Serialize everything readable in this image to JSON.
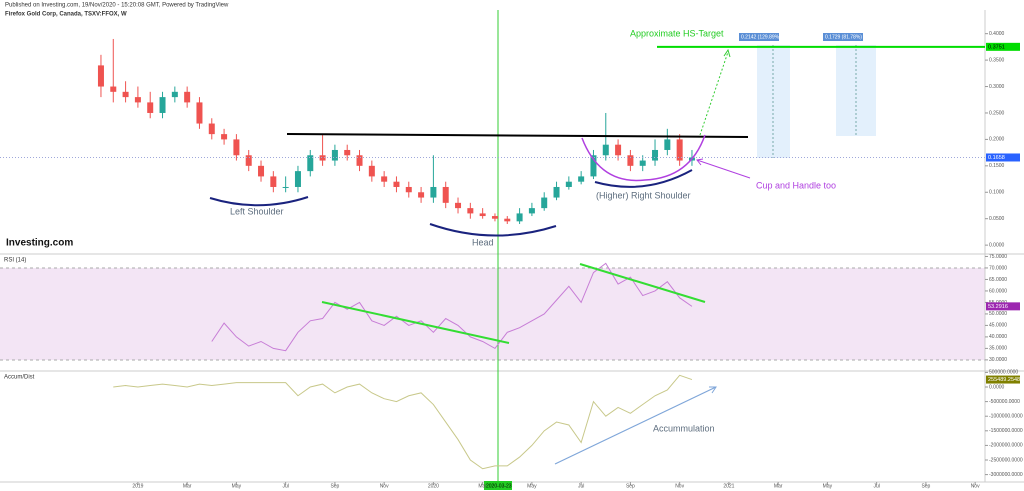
{
  "header": {
    "published": "Published on Investing.com, 19/Nov/2020 - 15:20:08 GMT, Powered by TradingView",
    "logo": "Investing.com"
  },
  "chart_data": [
    {
      "type": "candlestick",
      "title": "Firefox Gold Corp, Canada, TSXV:FFOX, W",
      "x": [
        -1.5,
        -1,
        -0.5,
        0,
        0.5,
        1,
        1.5,
        2,
        2.5,
        3,
        3.5,
        4,
        4.5,
        5,
        5.5,
        6,
        6.5,
        7,
        7.5,
        8,
        8.5,
        9,
        9.5,
        10,
        10.5,
        11,
        11.5,
        12,
        12.5,
        13,
        13.5,
        14,
        14.5,
        15,
        15.5,
        16,
        16.5,
        17,
        17.5,
        18,
        18.5,
        19,
        19.5,
        20,
        20.5,
        21,
        21.5,
        22,
        22.5
      ],
      "open": [
        0.34,
        0.3,
        0.29,
        0.28,
        0.27,
        0.25,
        0.28,
        0.29,
        0.27,
        0.23,
        0.21,
        0.2,
        0.17,
        0.15,
        0.13,
        0.11,
        0.11,
        0.14,
        0.17,
        0.16,
        0.18,
        0.17,
        0.15,
        0.13,
        0.12,
        0.11,
        0.1,
        0.09,
        0.11,
        0.08,
        0.07,
        0.06,
        0.055,
        0.05,
        0.045,
        0.06,
        0.07,
        0.09,
        0.11,
        0.12,
        0.13,
        0.17,
        0.19,
        0.17,
        0.15,
        0.16,
        0.18,
        0.2,
        0.16
      ],
      "high": [
        0.36,
        0.39,
        0.31,
        0.3,
        0.29,
        0.29,
        0.3,
        0.3,
        0.28,
        0.24,
        0.22,
        0.21,
        0.18,
        0.16,
        0.14,
        0.13,
        0.15,
        0.18,
        0.21,
        0.19,
        0.19,
        0.18,
        0.16,
        0.14,
        0.13,
        0.12,
        0.11,
        0.17,
        0.12,
        0.09,
        0.08,
        0.07,
        0.06,
        0.055,
        0.07,
        0.08,
        0.1,
        0.12,
        0.13,
        0.14,
        0.18,
        0.25,
        0.2,
        0.18,
        0.17,
        0.2,
        0.22,
        0.21,
        0.18
      ],
      "low": [
        0.28,
        0.27,
        0.27,
        0.26,
        0.24,
        0.24,
        0.27,
        0.26,
        0.22,
        0.2,
        0.19,
        0.16,
        0.14,
        0.12,
        0.1,
        0.1,
        0.1,
        0.13,
        0.15,
        0.15,
        0.16,
        0.14,
        0.12,
        0.11,
        0.1,
        0.09,
        0.08,
        0.08,
        0.07,
        0.06,
        0.05,
        0.05,
        0.045,
        0.04,
        0.04,
        0.055,
        0.065,
        0.085,
        0.105,
        0.115,
        0.125,
        0.16,
        0.16,
        0.14,
        0.14,
        0.15,
        0.17,
        0.15,
        0.15
      ],
      "close": [
        0.3,
        0.29,
        0.28,
        0.27,
        0.25,
        0.28,
        0.29,
        0.27,
        0.23,
        0.21,
        0.2,
        0.17,
        0.15,
        0.13,
        0.11,
        0.11,
        0.14,
        0.17,
        0.16,
        0.18,
        0.17,
        0.15,
        0.13,
        0.12,
        0.11,
        0.1,
        0.09,
        0.11,
        0.08,
        0.07,
        0.06,
        0.055,
        0.05,
        0.045,
        0.06,
        0.07,
        0.09,
        0.11,
        0.12,
        0.13,
        0.17,
        0.19,
        0.17,
        0.15,
        0.16,
        0.18,
        0.2,
        0.16,
        0.1658
      ],
      "up_color": "#26a69a",
      "down_color": "#ef5350",
      "target": 0.3751,
      "target_color": "#00dd00",
      "ylim": [
        -0.013,
        0.441
      ],
      "yticks": [
        {
          "value": 0,
          "label": "0.0000"
        },
        {
          "value": 0.05,
          "label": "0.0500"
        },
        {
          "value": 0.1,
          "label": "0.1000"
        },
        {
          "value": 0.15,
          "label": "0.1500"
        },
        {
          "value": 0.2,
          "label": "0.2000"
        },
        {
          "value": 0.25,
          "label": "0.2500"
        },
        {
          "value": 0.3,
          "label": "0.3000"
        },
        {
          "value": 0.35,
          "label": "0.3500"
        },
        {
          "value": 0.4,
          "label": "0.4000"
        }
      ],
      "xlim": [
        -5.6,
        34.4
      ],
      "xticks": [
        {
          "value": 0,
          "label": "2019"
        },
        {
          "value": 2,
          "label": "Mar"
        },
        {
          "value": 4,
          "label": "May"
        },
        {
          "value": 6,
          "label": "Jul"
        },
        {
          "value": 8,
          "label": "Sep"
        },
        {
          "value": 10,
          "label": "Nov"
        },
        {
          "value": 12,
          "label": "2020"
        },
        {
          "value": 14,
          "label": "Mar"
        },
        {
          "value": 16,
          "label": "May"
        },
        {
          "value": 18,
          "label": "Jul"
        },
        {
          "value": 20,
          "label": "Sep"
        },
        {
          "value": 22,
          "label": "Nov"
        },
        {
          "value": 24,
          "label": "2021"
        },
        {
          "value": 26,
          "label": "Mar"
        },
        {
          "value": 28,
          "label": "May"
        },
        {
          "value": 30,
          "label": "Jul"
        },
        {
          "value": 32,
          "label": "Sep"
        },
        {
          "value": 34,
          "label": "Nov"
        }
      ],
      "crosshair_date": "2020-03-23",
      "annotations": [
        "Approximate HS-Target",
        "Left Shoulder",
        "Head",
        "(Higher) Right Shoulder",
        "Cup and Handle too",
        "0.2142 (129.89%) 2142",
        "0.1729 (81.78%) 1729"
      ]
    },
    {
      "type": "line",
      "title": "RSI (14)",
      "color": "#c77dd6",
      "x": [
        3,
        3.5,
        4,
        4.5,
        5,
        5.5,
        6,
        6.5,
        7,
        7.5,
        8,
        8.5,
        9,
        9.5,
        10,
        10.5,
        11,
        11.5,
        12,
        12.5,
        13,
        13.5,
        14,
        14.5,
        15,
        15.5,
        16,
        16.5,
        17,
        17.5,
        18,
        18.5,
        19,
        19.5,
        20,
        20.5,
        21,
        21.5,
        22,
        22.5
      ],
      "values": [
        38,
        46,
        40,
        36,
        38,
        35,
        34,
        42,
        47,
        48,
        55,
        52,
        55,
        47,
        45,
        49,
        45,
        47,
        42,
        48,
        45,
        40,
        38,
        35,
        42,
        44,
        47,
        50,
        56,
        62,
        55,
        68,
        72,
        63,
        66,
        58,
        60,
        64,
        57,
        53.2916
      ],
      "ylim": [
        25.6,
        75.2
      ],
      "yticks": [
        {
          "value": 30,
          "label": "30.0000"
        },
        {
          "value": 35,
          "label": "35.0000"
        },
        {
          "value": 40,
          "label": "40.0000"
        },
        {
          "value": 45,
          "label": "45.0000"
        },
        {
          "value": 50,
          "label": "50.0000"
        },
        {
          "value": 55,
          "label": "55.0000"
        },
        {
          "value": 60,
          "label": "60.0000"
        },
        {
          "value": 65,
          "label": "65.0000"
        },
        {
          "value": 70,
          "label": "70.0000"
        },
        {
          "value": 75,
          "label": "75.0000"
        }
      ]
    },
    {
      "type": "line",
      "title": "Accum/Dist",
      "color": "#c8c88a",
      "x": [
        -1,
        -0.5,
        0,
        0.5,
        1,
        1.5,
        2,
        2.5,
        3,
        3.5,
        4,
        4.5,
        5,
        5.5,
        6,
        6.5,
        7,
        7.5,
        8,
        8.5,
        9,
        9.5,
        10,
        10.5,
        11,
        11.5,
        12,
        12.5,
        13,
        13.5,
        14,
        14.5,
        15,
        15.5,
        16,
        16.5,
        17,
        17.5,
        18,
        18.5,
        19,
        19.5,
        20,
        20.5,
        21,
        21.5,
        22,
        22.5
      ],
      "values": [
        0,
        50000,
        0,
        50000,
        100000,
        50000,
        0,
        100000,
        50000,
        100000,
        150000,
        150000,
        150000,
        150000,
        150000,
        -300000,
        0,
        100000,
        -200000,
        0,
        100000,
        -200000,
        -400000,
        -500000,
        -300000,
        -200000,
        -600000,
        -1200000,
        -1800000,
        -2500000,
        -2800000,
        -2700000,
        -2700000,
        -2400000,
        -2000000,
        -1500000,
        -1200000,
        -1300000,
        -1900000,
        -500000,
        -1000000,
        -700000,
        -900000,
        -600000,
        -300000,
        -100000,
        400000,
        255489.2548
      ],
      "ylim": [
        -3253000,
        514000
      ],
      "yticks": [
        {
          "value": -3000000,
          "label": "-3000000.0000"
        },
        {
          "value": -2500000,
          "label": "-2500000.0000"
        },
        {
          "value": -2000000,
          "label": "-2000000.0000"
        },
        {
          "value": -1500000,
          "label": "-1500000.0000"
        },
        {
          "value": -1000000,
          "label": "-1000000.0000"
        },
        {
          "value": -500000,
          "label": "-500000.0000"
        },
        {
          "value": 0,
          "label": "0.0000"
        },
        {
          "value": 500000,
          "label": "500000.0000"
        }
      ],
      "annotations": [
        "Accummulation"
      ]
    }
  ]
}
